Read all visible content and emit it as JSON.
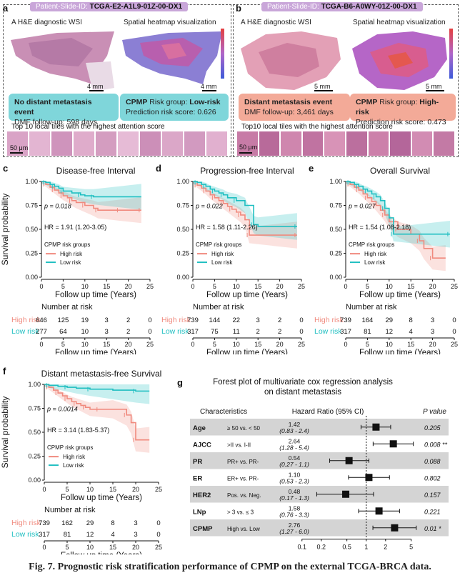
{
  "panel_a": {
    "letter": "a",
    "patient_label": "Patient-Slide-ID:",
    "patient_id": "TCGA-E2-A1L9-01Z-00-DX1",
    "wsi_caption": "A H&E diagnostic WSI",
    "heatmap_caption": "Spatial heatmap visualization",
    "scale_wsi": "4 mm",
    "scale_heatmap": "4 mm",
    "event_title": "No distant metastasis event",
    "event_detail": "DMF follow-up: 598 days",
    "risk_prefix": "CPMP",
    "risk_text": " Risk group: ",
    "risk_value": "Low-risk",
    "risk_score": "Prediction risk score: 0.626",
    "tiles_caption": "Top 10 local tiles with the highest attention score",
    "tile_scale": "50 μm",
    "colors": {
      "box": "#7fd6da"
    }
  },
  "panel_b": {
    "letter": "b",
    "patient_label": "Patient-Slide-ID:",
    "patient_id": "TCGA-B6-A0WY-01Z-00-DX1",
    "wsi_caption": "A H&E diagnostic WSI",
    "heatmap_caption": "Spatial heatmap visualization",
    "scale_wsi": "5 mm",
    "scale_heatmap": "5 mm",
    "event_title": "Distant metastasis event",
    "event_detail": "DMF follow-up: 3,461 days",
    "risk_prefix": "CPMP",
    "risk_text": " Risk group: ",
    "risk_value": "High-risk",
    "risk_score": "Prediction risk score: 0.473",
    "tiles_caption": "Top10 local tiles with the highest attention score",
    "tile_scale": "50 μm",
    "colors": {
      "box": "#f3aa98"
    }
  },
  "km_common": {
    "ylabel": "Survival probability",
    "xlabel": "Follow up time (Years)",
    "legend_title": "CPMP risk groups",
    "legend_high": "High risk",
    "legend_low": "Low risk",
    "risk_table_title": "Number at risk",
    "high_label": "High risk",
    "low_label": "Low risk",
    "colors": {
      "high": "#f08a7e",
      "low": "#1fbfc1"
    }
  },
  "chart_data": [
    {
      "type": "line",
      "panel": "c",
      "title": "Disease-free Interval",
      "p_value": "p = 0.018",
      "hr": "HR = 1.91 (1.20-3.05)",
      "xlim": [
        0,
        25
      ],
      "ylim": [
        0,
        1
      ],
      "xticks": [
        0,
        5,
        10,
        15,
        20,
        25
      ],
      "yticks": [
        "0.00",
        "0.25",
        "0.50",
        "0.75",
        "1.00"
      ],
      "series": [
        {
          "name": "High risk",
          "x": [
            0,
            1,
            2,
            3,
            4,
            5,
            6,
            7,
            8,
            10,
            12,
            13,
            15,
            18,
            20,
            23
          ],
          "y": [
            1,
            0.97,
            0.94,
            0.91,
            0.88,
            0.85,
            0.83,
            0.8,
            0.78,
            0.75,
            0.72,
            0.7,
            0.7,
            0.7,
            0.7,
            0.7
          ]
        },
        {
          "name": "Low risk",
          "x": [
            0,
            1,
            2,
            3,
            4,
            5,
            7,
            9,
            10,
            12,
            23
          ],
          "y": [
            1,
            0.99,
            0.97,
            0.95,
            0.93,
            0.9,
            0.88,
            0.86,
            0.85,
            0.84,
            0.84
          ]
        }
      ],
      "risk_times": [
        0,
        5,
        10,
        15,
        20,
        25
      ],
      "risk_high": [
        "646",
        "125",
        "19",
        "3",
        "2",
        "0"
      ],
      "risk_low": [
        "277",
        "64",
        "10",
        "3",
        "2",
        "0"
      ]
    },
    {
      "type": "line",
      "panel": "d",
      "title": "Progression-free Interval",
      "p_value": "p = 0.022",
      "hr": "HR = 1.58 (1.11-2.26)",
      "xlim": [
        0,
        25
      ],
      "ylim": [
        0,
        1
      ],
      "xticks": [
        0,
        5,
        10,
        15,
        20,
        25
      ],
      "yticks": [
        "0.00",
        "0.25",
        "0.50",
        "0.75",
        "1.00"
      ],
      "series": [
        {
          "name": "High risk",
          "x": [
            0,
            1,
            2,
            3,
            4,
            5,
            6,
            7,
            8,
            9,
            10,
            11,
            12,
            13,
            15,
            24
          ],
          "y": [
            1,
            0.96,
            0.93,
            0.9,
            0.86,
            0.83,
            0.8,
            0.77,
            0.74,
            0.71,
            0.68,
            0.65,
            0.6,
            0.44,
            0.44,
            0.44
          ]
        },
        {
          "name": "Low risk",
          "x": [
            0,
            1,
            2,
            3,
            4,
            5,
            6,
            7,
            8,
            10,
            12,
            14,
            15,
            24
          ],
          "y": [
            1,
            0.99,
            0.97,
            0.95,
            0.92,
            0.9,
            0.88,
            0.86,
            0.83,
            0.8,
            0.75,
            0.55,
            0.53,
            0.53
          ]
        }
      ],
      "risk_times": [
        0,
        5,
        10,
        15,
        20,
        25
      ],
      "risk_high": [
        "739",
        "144",
        "22",
        "3",
        "2",
        "0"
      ],
      "risk_low": [
        "317",
        "75",
        "11",
        "2",
        "2",
        "0"
      ]
    },
    {
      "type": "line",
      "panel": "e",
      "title": "Overall Survival",
      "p_value": "p = 0.027",
      "hr": "HR = 1.54 (1.08-2.18)",
      "xlim": [
        0,
        25
      ],
      "ylim": [
        0,
        1
      ],
      "xticks": [
        0,
        5,
        10,
        15,
        20,
        25
      ],
      "yticks": [
        "0.00",
        "0.25",
        "0.50",
        "0.75",
        "1.00"
      ],
      "series": [
        {
          "name": "High risk",
          "x": [
            0,
            1,
            2,
            3,
            4,
            5,
            6,
            7,
            8,
            9,
            10,
            12,
            15,
            17,
            18,
            20,
            23
          ],
          "y": [
            1,
            0.97,
            0.94,
            0.91,
            0.87,
            0.83,
            0.79,
            0.75,
            0.7,
            0.65,
            0.58,
            0.5,
            0.45,
            0.38,
            0.3,
            0.2,
            0.2
          ]
        },
        {
          "name": "Low risk",
          "x": [
            0,
            1,
            2,
            3,
            4,
            5,
            6,
            7,
            8,
            9,
            10,
            11,
            12,
            24
          ],
          "y": [
            1,
            0.99,
            0.97,
            0.95,
            0.92,
            0.9,
            0.87,
            0.84,
            0.8,
            0.72,
            0.62,
            0.45,
            0.45,
            0.45
          ]
        }
      ],
      "risk_times": [
        0,
        5,
        10,
        15,
        20,
        25
      ],
      "risk_high": [
        "739",
        "164",
        "29",
        "8",
        "3",
        "0"
      ],
      "risk_low": [
        "317",
        "81",
        "12",
        "4",
        "3",
        "0"
      ]
    },
    {
      "type": "line",
      "panel": "f",
      "title": "Distant metastasis-free Survival",
      "p_value": "p = 0.0014",
      "hr": "HR = 3.14 (1.83-5.37)",
      "xlim": [
        0,
        25
      ],
      "ylim": [
        0,
        1
      ],
      "xticks": [
        0,
        5,
        10,
        15,
        20,
        25
      ],
      "yticks": [
        "0.00",
        "0.25",
        "0.50",
        "0.75",
        "1.00"
      ],
      "series": [
        {
          "name": "High risk",
          "x": [
            0,
            1,
            2,
            3,
            4,
            5,
            6,
            7,
            8,
            9,
            10,
            12,
            15,
            18,
            19,
            20,
            23
          ],
          "y": [
            1,
            0.97,
            0.94,
            0.91,
            0.88,
            0.85,
            0.82,
            0.8,
            0.78,
            0.76,
            0.74,
            0.74,
            0.74,
            0.68,
            0.6,
            0.42,
            0.42
          ]
        },
        {
          "name": "Low risk",
          "x": [
            0,
            1,
            3,
            5,
            7,
            10,
            15,
            20,
            23
          ],
          "y": [
            1,
            0.99,
            0.98,
            0.97,
            0.96,
            0.95,
            0.94,
            0.93,
            0.93
          ]
        }
      ],
      "risk_times": [
        0,
        5,
        10,
        15,
        20,
        25
      ],
      "risk_high": [
        "739",
        "162",
        "29",
        "8",
        "3",
        "0"
      ],
      "risk_low": [
        "317",
        "81",
        "12",
        "4",
        "3",
        "0"
      ]
    },
    {
      "type": "forest",
      "panel": "g",
      "title_line1": "Forest plot of multivariate cox regression analysis",
      "title_line2": "on distant metastasis",
      "col_characteristics": "Characteristics",
      "col_hr": "Hazard Ratio (95% CI)",
      "col_p": "P value",
      "xscale": "log",
      "xticks": [
        0.1,
        0.2,
        0.5,
        1,
        2,
        5
      ],
      "xtick_labels": [
        "0.1",
        "0.2",
        "0.5",
        "1",
        "2",
        "5"
      ],
      "rows": [
        {
          "name": "Age",
          "comparison": "≥ 50 vs. < 50",
          "hr": 1.42,
          "lo": 0.83,
          "hi": 2.4,
          "hr_text": "1.42",
          "ci_text": "(0.83 - 2.4)",
          "p": "0.205"
        },
        {
          "name": "AJCC",
          "comparison": ">II vs. I-II",
          "hr": 2.64,
          "lo": 1.28,
          "hi": 5.4,
          "hr_text": "2.64",
          "ci_text": "(1.28 - 5.4)",
          "p": "0.008 **"
        },
        {
          "name": "PR",
          "comparison": "PR+ vs. PR-",
          "hr": 0.54,
          "lo": 0.27,
          "hi": 1.1,
          "hr_text": "0.54",
          "ci_text": "(0.27 - 1.1)",
          "p": "0.088"
        },
        {
          "name": "ER",
          "comparison": "ER+ vs. PR-",
          "hr": 1.1,
          "lo": 0.53,
          "hi": 2.3,
          "hr_text": "1.10",
          "ci_text": "(0.53 - 2.3)",
          "p": "0.802"
        },
        {
          "name": "HER2",
          "comparison": "Pos. vs. Neg.",
          "hr": 0.48,
          "lo": 0.17,
          "hi": 1.3,
          "hr_text": "0.48",
          "ci_text": "(0.17 - 1.3)",
          "p": "0.157"
        },
        {
          "name": "LNp",
          "comparison": "> 3 vs. ≤ 3",
          "hr": 1.58,
          "lo": 0.76,
          "hi": 3.3,
          "hr_text": "1.58",
          "ci_text": "(0.76 - 3.3)",
          "p": "0.221"
        },
        {
          "name": "CPMP",
          "comparison": "High vs. Low",
          "hr": 2.76,
          "lo": 1.27,
          "hi": 6.0,
          "hr_text": "2.76",
          "ci_text": "(1.27 - 6.0)",
          "p": "0.01 *"
        }
      ]
    }
  ],
  "figure_caption": "Fig. 7.    Prognostic risk stratification performance of CPMP on the external TCGA-BRCA data."
}
